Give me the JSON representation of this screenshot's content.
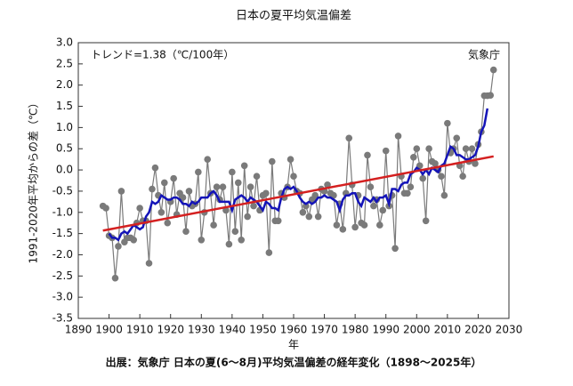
{
  "chart_data": {
    "type": "line",
    "title": "日本の夏平均気温偏差",
    "annotations": [
      "トレンド=1.38（℃/100年）",
      "気象庁"
    ],
    "ylabel": "1991-2020年平均からの差（℃）",
    "xlabel": "年",
    "caption": "出展：気象庁 日本の夏(6～8月)平均気温偏差の経年変化（1898～2025年）",
    "xlim": [
      1890,
      2030
    ],
    "xticks": [
      1890,
      1900,
      1910,
      1920,
      1930,
      1940,
      1950,
      1960,
      1970,
      1980,
      1990,
      2000,
      2010,
      2020,
      2030
    ],
    "ylim": [
      -3.5,
      3.0
    ],
    "yticks": [
      {
        "value": -3.5,
        "label": "-3.5"
      },
      {
        "value": -3,
        "label": "-3.0"
      },
      -2.5,
      {
        "value": -2,
        "label": "-2.0"
      },
      -1.5,
      {
        "value": -1,
        "label": "-1.0"
      },
      -0.5,
      {
        "value": 0,
        "label": "0.0"
      },
      0.5,
      {
        "value": 1,
        "label": "1.0"
      },
      1.5,
      {
        "value": 2,
        "label": "2.0"
      },
      2.5,
      {
        "value": 3,
        "label": "3.0"
      }
    ],
    "series": [
      {
        "color": "#7a7a7a",
        "markers": true,
        "x": [
          1898,
          1899,
          1900,
          1901,
          1902,
          1903,
          1904,
          1905,
          1906,
          1907,
          1908,
          1909,
          1910,
          1911,
          1912,
          1913,
          1914,
          1915,
          1916,
          1917,
          1918,
          1919,
          1920,
          1921,
          1922,
          1923,
          1924,
          1925,
          1926,
          1927,
          1928,
          1929,
          1930,
          1931,
          1932,
          1933,
          1934,
          1935,
          1936,
          1937,
          1938,
          1939,
          1940,
          1941,
          1942,
          1943,
          1944,
          1945,
          1946,
          1947,
          1948,
          1949,
          1950,
          1951,
          1952,
          1953,
          1954,
          1955,
          1956,
          1957,
          1958,
          1959,
          1960,
          1961,
          1962,
          1963,
          1964,
          1965,
          1966,
          1967,
          1968,
          1969,
          1970,
          1971,
          1972,
          1973,
          1974,
          1975,
          1976,
          1977,
          1978,
          1979,
          1980,
          1981,
          1982,
          1983,
          1984,
          1985,
          1986,
          1987,
          1988,
          1989,
          1990,
          1991,
          1992,
          1993,
          1994,
          1995,
          1996,
          1997,
          1998,
          1999,
          2000,
          2001,
          2002,
          2003,
          2004,
          2005,
          2006,
          2007,
          2008,
          2009,
          2010,
          2011,
          2012,
          2013,
          2014,
          2015,
          2016,
          2017,
          2018,
          2019,
          2020,
          2021,
          2022,
          2023,
          2024,
          2025
        ],
        "values": [
          -0.85,
          -0.9,
          -1.55,
          -1.6,
          -2.55,
          -1.8,
          -0.5,
          -1.7,
          -1.6,
          -1.6,
          -1.65,
          -1.25,
          -0.9,
          -1.2,
          -1.2,
          -2.2,
          -0.45,
          0.05,
          -0.6,
          -1.0,
          -0.3,
          -1.25,
          -0.75,
          -0.2,
          -1.05,
          -0.55,
          -0.65,
          -1.45,
          -0.5,
          -0.85,
          -0.8,
          -0.05,
          -1.65,
          -1.0,
          0.25,
          -0.55,
          -1.3,
          -0.4,
          -0.7,
          -0.4,
          -0.95,
          -1.75,
          -0.05,
          -1.45,
          -0.3,
          -1.65,
          0.1,
          -1.1,
          -0.4,
          -0.85,
          -0.15,
          -0.95,
          -0.6,
          -0.55,
          -1.95,
          0.2,
          -1.2,
          -1.2,
          -0.55,
          -0.65,
          -0.4,
          0.25,
          -0.15,
          -0.5,
          -0.55,
          -1.0,
          -0.85,
          -1.1,
          -0.7,
          -0.6,
          -1.1,
          -0.45,
          -0.5,
          -0.35,
          -0.55,
          -0.6,
          -1.3,
          -0.8,
          -1.4,
          -0.55,
          0.75,
          -0.35,
          -1.35,
          -0.6,
          -1.25,
          -1.3,
          0.35,
          -0.4,
          -0.85,
          -0.7,
          -1.3,
          -0.95,
          0.45,
          -0.85,
          -0.6,
          -1.85,
          0.8,
          -0.15,
          -0.55,
          -0.55,
          -0.4,
          0.3,
          0.5,
          0.1,
          -0.2,
          -1.2,
          0.5,
          0.2,
          0.15,
          0.0,
          -0.15,
          -0.6,
          1.1,
          0.4,
          0.5,
          0.75,
          0.1,
          -0.15,
          0.5,
          0.2,
          0.5,
          0.15,
          0.6,
          0.9,
          1.75,
          1.75,
          1.76,
          2.36
        ]
      },
      {
        "color": "#1414b8",
        "markers": false,
        "x": [
          1900,
          1901,
          1902,
          1903,
          1904,
          1905,
          1906,
          1907,
          1908,
          1909,
          1910,
          1911,
          1912,
          1913,
          1914,
          1915,
          1916,
          1917,
          1918,
          1919,
          1920,
          1921,
          1922,
          1923,
          1924,
          1925,
          1926,
          1927,
          1928,
          1929,
          1930,
          1931,
          1932,
          1933,
          1934,
          1935,
          1936,
          1937,
          1938,
          1939,
          1940,
          1941,
          1942,
          1943,
          1944,
          1945,
          1946,
          1947,
          1948,
          1949,
          1950,
          1951,
          1952,
          1953,
          1954,
          1955,
          1956,
          1957,
          1958,
          1959,
          1960,
          1961,
          1962,
          1963,
          1964,
          1965,
          1966,
          1967,
          1968,
          1969,
          1970,
          1971,
          1972,
          1973,
          1974,
          1975,
          1976,
          1977,
          1978,
          1979,
          1980,
          1981,
          1982,
          1983,
          1984,
          1985,
          1986,
          1987,
          1988,
          1989,
          1990,
          1991,
          1992,
          1993,
          1994,
          1995,
          1996,
          1997,
          1998,
          1999,
          2000,
          2001,
          2002,
          2003,
          2004,
          2005,
          2006,
          2007,
          2008,
          2009,
          2010,
          2011,
          2012,
          2013,
          2014,
          2015,
          2016,
          2017,
          2018,
          2019,
          2020,
          2021,
          2022,
          2023
        ],
        "values": [
          -1.5,
          -1.6,
          -1.6,
          -1.65,
          -1.5,
          -1.45,
          -1.5,
          -1.4,
          -1.3,
          -1.35,
          -1.4,
          -1.35,
          -1.1,
          -1.0,
          -0.75,
          -0.8,
          -0.75,
          -0.6,
          -0.65,
          -0.7,
          -0.7,
          -0.65,
          -0.65,
          -0.7,
          -0.8,
          -0.8,
          -0.85,
          -0.75,
          -0.8,
          -0.75,
          -0.65,
          -0.65,
          -0.65,
          -0.55,
          -0.5,
          -0.6,
          -0.75,
          -0.75,
          -0.75,
          -0.75,
          -0.95,
          -0.7,
          -0.65,
          -0.6,
          -0.65,
          -0.75,
          -0.65,
          -0.7,
          -0.75,
          -0.85,
          -0.95,
          -0.75,
          -0.8,
          -0.9,
          -0.9,
          -0.95,
          -0.65,
          -0.45,
          -0.4,
          -0.45,
          -0.4,
          -0.5,
          -0.65,
          -0.75,
          -0.8,
          -0.75,
          -0.8,
          -0.75,
          -0.65,
          -0.65,
          -0.6,
          -0.65,
          -0.65,
          -0.7,
          -0.75,
          -0.95,
          -0.7,
          -0.6,
          -0.6,
          -0.55,
          -0.55,
          -0.75,
          -0.85,
          -0.65,
          -0.7,
          -0.75,
          -0.65,
          -0.75,
          -0.65,
          -0.65,
          -0.6,
          -0.8,
          -0.45,
          -0.45,
          -0.5,
          -0.35,
          -0.3,
          -0.3,
          -0.1,
          -0.05,
          0.05,
          0.0,
          -0.1,
          0.0,
          -0.1,
          0.05,
          0.0,
          -0.05,
          0.1,
          0.15,
          0.35,
          0.55,
          0.5,
          0.35,
          0.35,
          0.3,
          0.25,
          0.25,
          0.3,
          0.35,
          0.55,
          0.9,
          1.05,
          1.45
        ]
      },
      {
        "color": "#d42020",
        "markers": false,
        "x": [
          1898,
          2025
        ],
        "values": [
          -1.43,
          0.32
        ]
      }
    ]
  }
}
